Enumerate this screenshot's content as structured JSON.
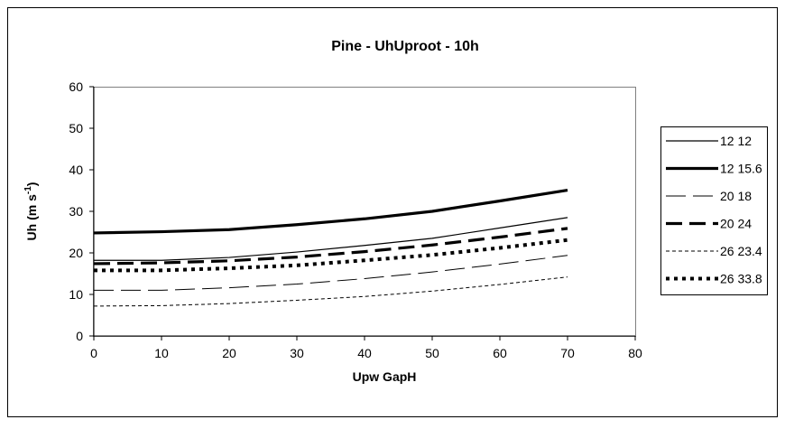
{
  "chart_data": {
    "type": "line",
    "title": "Pine - UhUproot - 10h",
    "xlabel": "Upw GapH",
    "ylabel": {
      "main": "Uh (m s",
      "sup": "-1",
      "close": ")"
    },
    "xlim": [
      0,
      80
    ],
    "ylim": [
      0,
      60
    ],
    "x_ticks": [
      "0",
      "10",
      "20",
      "30",
      "40",
      "50",
      "60",
      "70",
      "80"
    ],
    "y_ticks": [
      "0",
      "10",
      "20",
      "30",
      "40",
      "50",
      "60"
    ],
    "grid": false,
    "legend_position": "right",
    "x": [
      0,
      10,
      20,
      30,
      40,
      50,
      60,
      70
    ],
    "series": [
      {
        "name": "12 12",
        "style": "thin-solid",
        "values": [
          18.2,
          18.2,
          18.9,
          20.2,
          21.8,
          23.5,
          26.0,
          28.5
        ]
      },
      {
        "name": "12 15.6",
        "style": "thick-solid",
        "values": [
          24.8,
          25.1,
          25.6,
          26.8,
          28.2,
          30.0,
          32.5,
          35.1
        ]
      },
      {
        "name": "20 18",
        "style": "thin-long-dash",
        "values": [
          11.0,
          11.0,
          11.6,
          12.5,
          13.8,
          15.4,
          17.3,
          19.4
        ]
      },
      {
        "name": "20 24",
        "style": "thick-long-dash",
        "values": [
          17.4,
          17.6,
          18.1,
          19.0,
          20.3,
          21.9,
          23.8,
          25.9
        ]
      },
      {
        "name": "26 23.4",
        "style": "thin-short-dash",
        "values": [
          7.2,
          7.3,
          7.8,
          8.6,
          9.5,
          10.8,
          12.4,
          14.2
        ]
      },
      {
        "name": "26 33.8",
        "style": "thick-dot",
        "values": [
          15.8,
          15.8,
          16.3,
          17.0,
          18.2,
          19.5,
          21.2,
          23.1
        ]
      }
    ]
  }
}
